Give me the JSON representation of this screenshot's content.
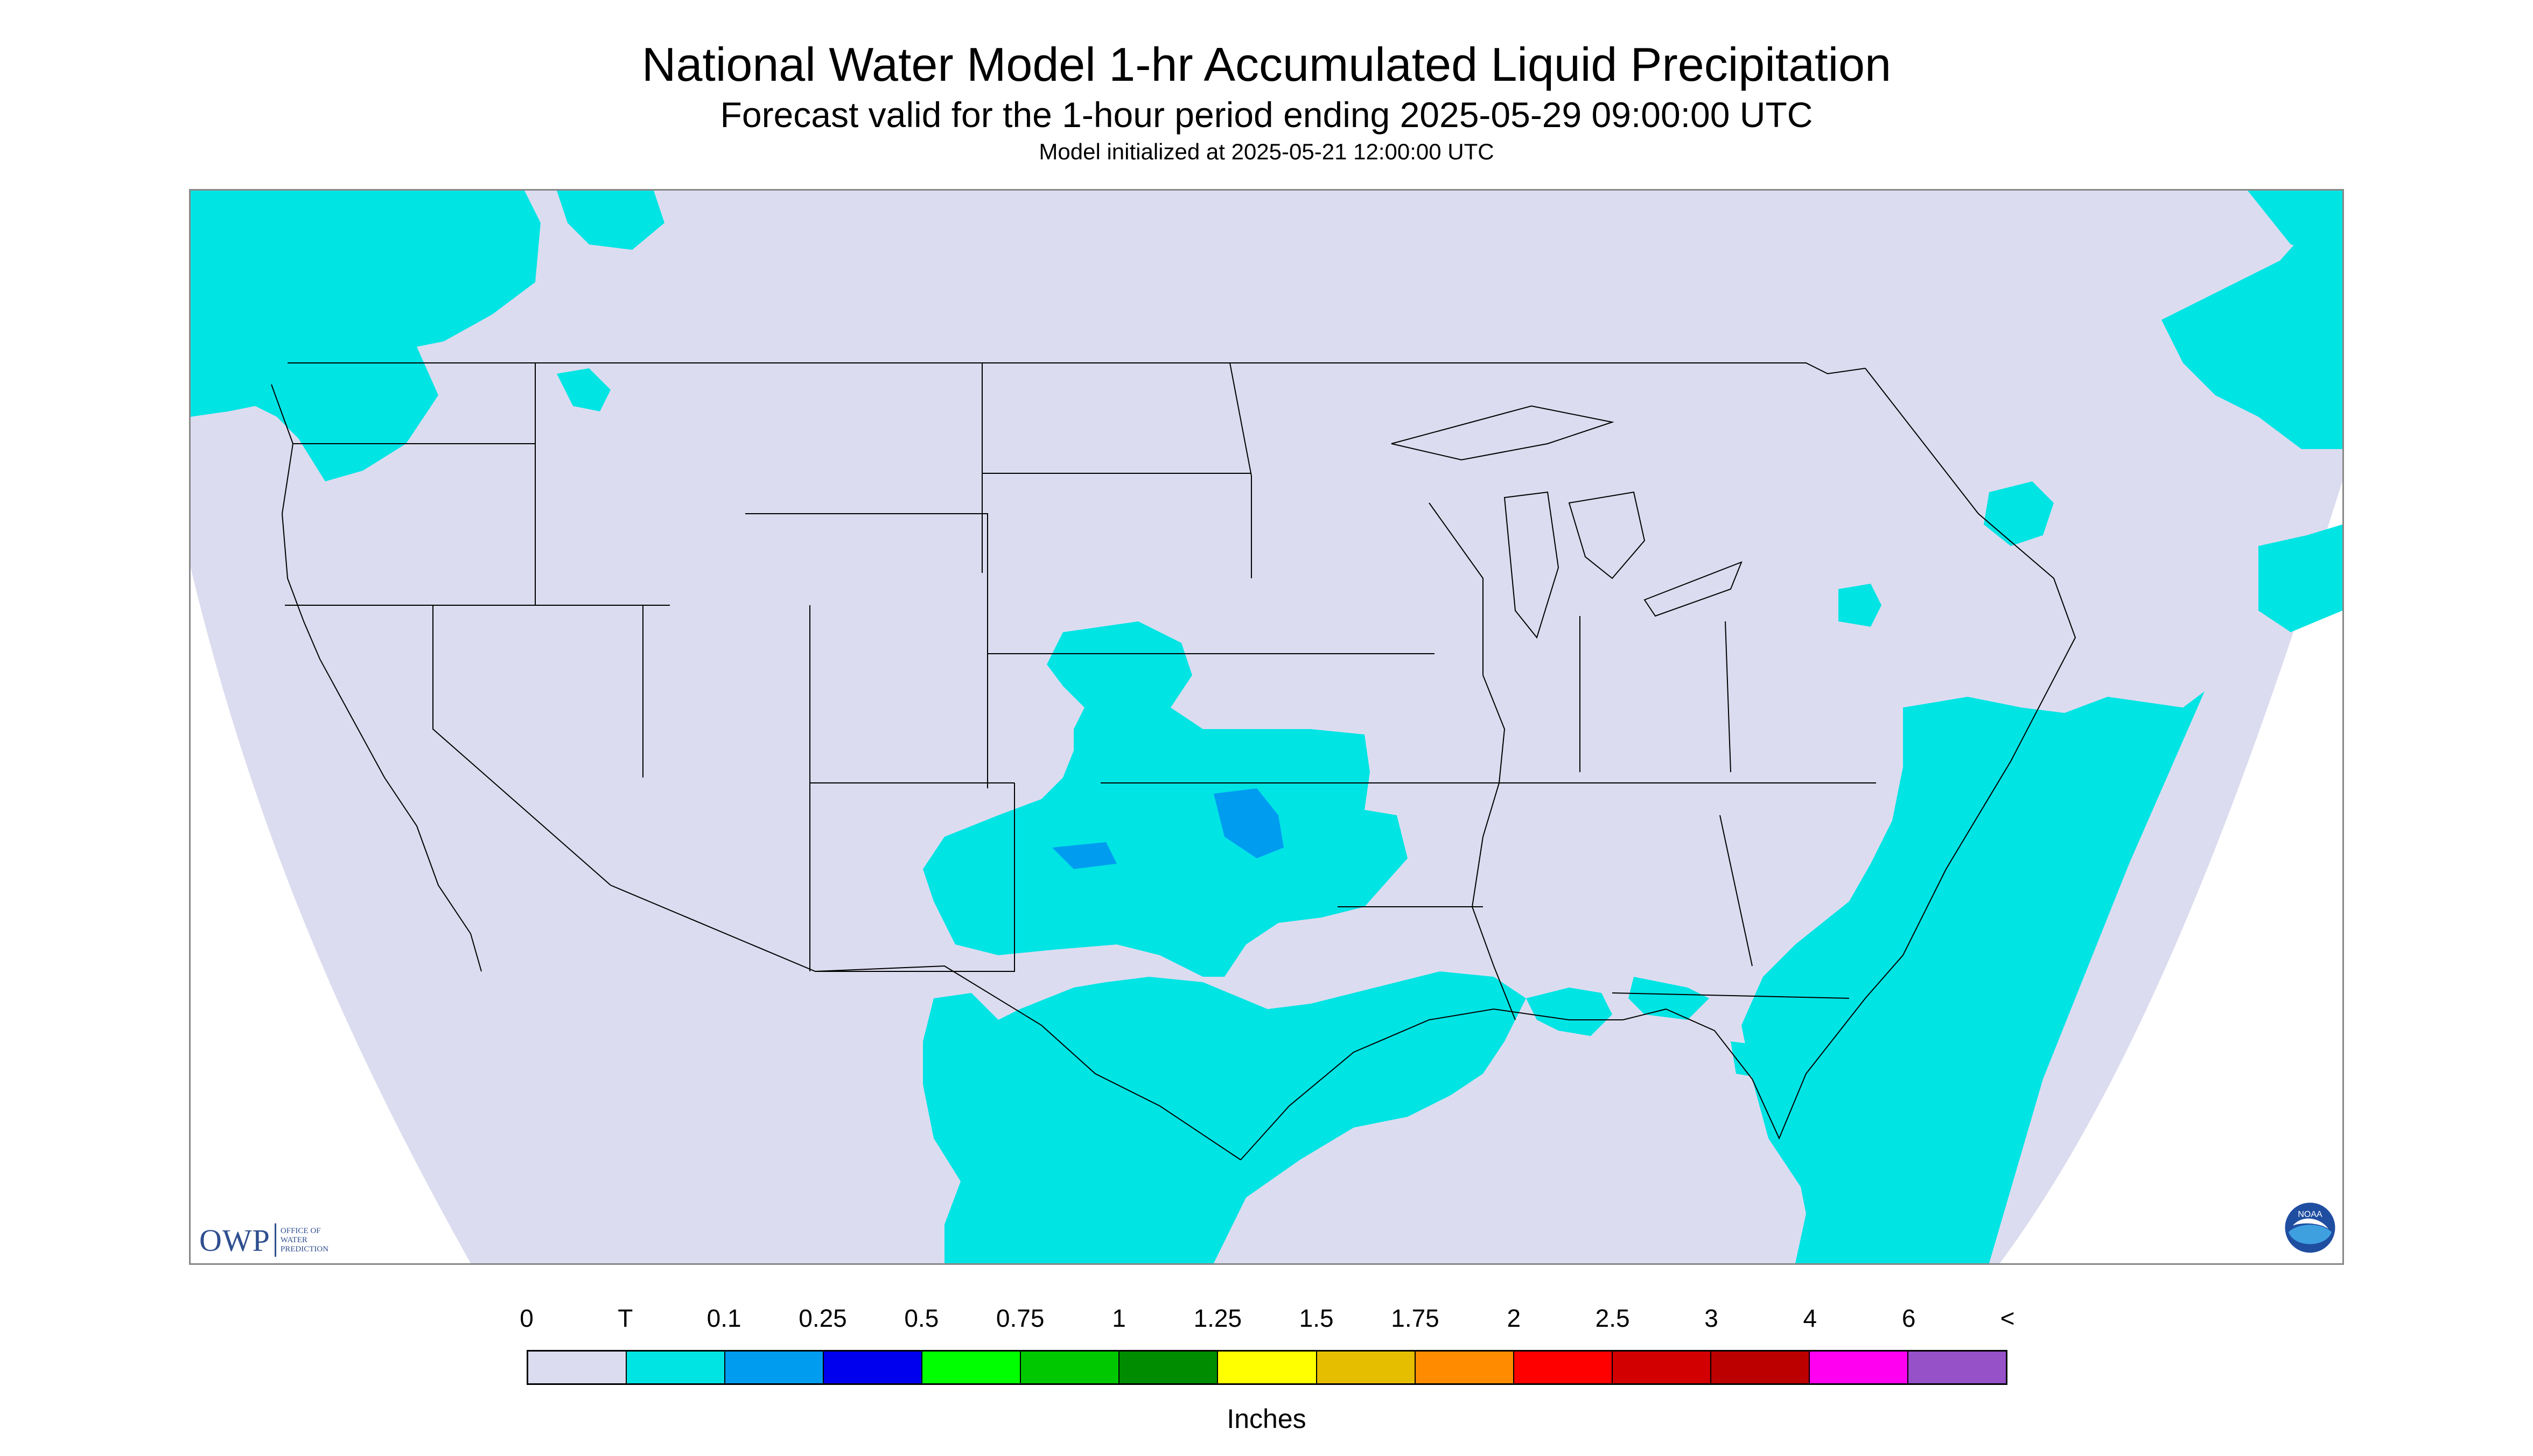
{
  "title": "National Water Model 1-hr Accumulated Liquid Precipitation",
  "subtitle": "Forecast valid for the 1-hour period ending 2025-05-29 09:00:00 UTC",
  "subtitle2": "Model initialized at 2025-05-21 12:00:00 UTC",
  "legend": {
    "labels": [
      "0",
      "T",
      "0.1",
      "0.25",
      "0.5",
      "0.75",
      "1",
      "1.25",
      "1.5",
      "1.75",
      "2",
      "2.5",
      "3",
      "4",
      "6",
      "<"
    ],
    "colors": [
      "#dcdcf0",
      "#00e4e4",
      "#009cf0",
      "#0000ee",
      "#00ff00",
      "#00c800",
      "#008c00",
      "#ffff00",
      "#e6be00",
      "#ff8c00",
      "#ff0000",
      "#d20000",
      "#bc0000",
      "#ff00f0",
      "#9650c8"
    ],
    "units": "Inches"
  },
  "map": {
    "background_color": "#dcdcf0",
    "outside_color": "#ffffff",
    "trace_color": "#00e4e4",
    "light_blue_color": "#009cf0",
    "boundary_color": "#000000"
  },
  "owp_logo": {
    "main": "OWP",
    "line1": "OFFICE OF",
    "line2": "WATER",
    "line3": "PREDICTION"
  },
  "noaa_logo": {
    "text": "NOAA"
  }
}
